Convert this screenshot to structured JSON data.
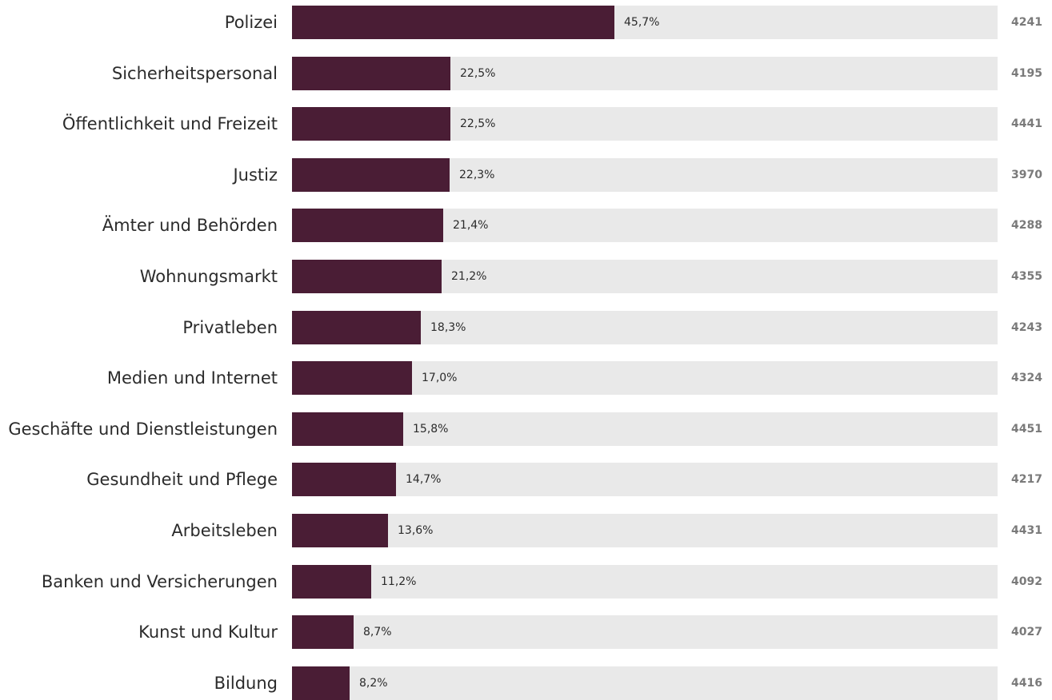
{
  "chart_data": {
    "type": "bar",
    "orientation": "horizontal",
    "title": "",
    "xlabel": "",
    "ylabel": "",
    "xlim": [
      0,
      100
    ],
    "grid": false,
    "bar_color": "#4a1d35",
    "track_color": "#e9e9e9",
    "categories": [
      "Polizei",
      "Sicherheitspersonal",
      "Öffentlichkeit und Freizeit",
      "Justiz",
      "Ämter und Behörden",
      "Wohnungsmarkt",
      "Privatleben",
      "Medien und Internet",
      "Geschäfte und Dienstleistungen",
      "Gesundheit und Pflege",
      "Arbeitsleben",
      "Banken und Versicherungen",
      "Kunst und Kultur",
      "Bildung"
    ],
    "values": [
      45.7,
      22.5,
      22.5,
      22.3,
      21.4,
      21.2,
      18.3,
      17.0,
      15.8,
      14.7,
      13.6,
      11.2,
      8.7,
      8.2
    ],
    "value_labels": [
      "45,7%",
      "22,5%",
      "22,5%",
      "22,3%",
      "21,4%",
      "21,2%",
      "18,3%",
      "17,0%",
      "15,8%",
      "14,7%",
      "13,6%",
      "11,2%",
      "8,7%",
      "8,2%"
    ],
    "n": [
      "4241",
      "4195",
      "4441",
      "3970",
      "4288",
      "4355",
      "4243",
      "4324",
      "4451",
      "4217",
      "4431",
      "4092",
      "4027",
      "4416"
    ]
  }
}
